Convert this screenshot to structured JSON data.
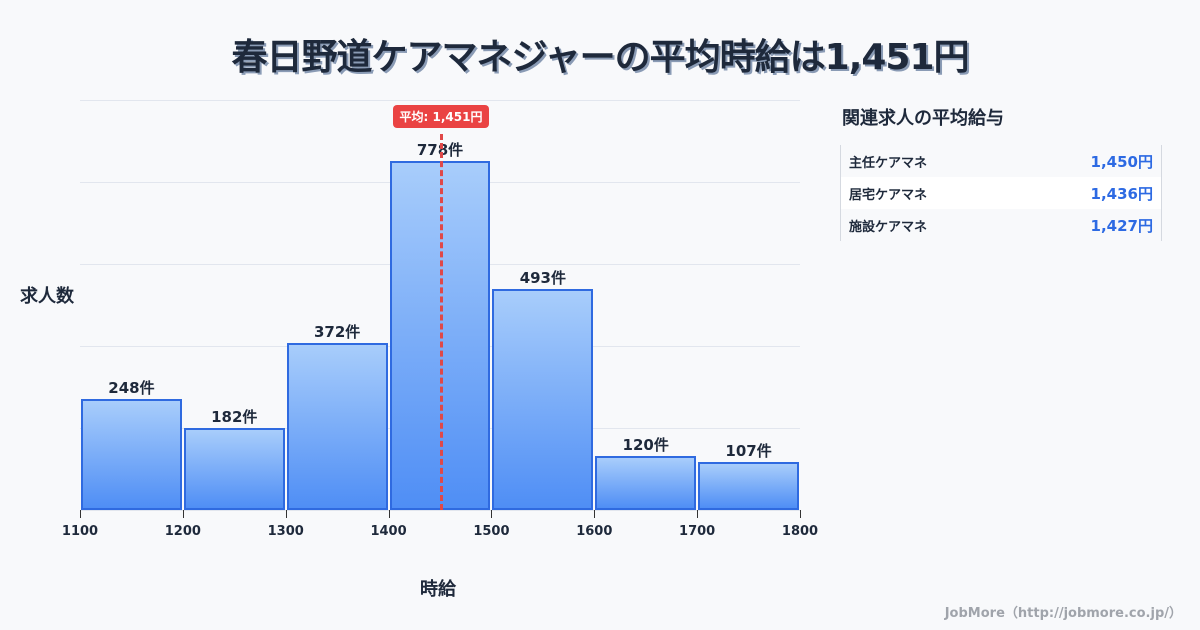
{
  "title": "春日野道ケアマネジャーの平均時給は1,451円",
  "chart_data": {
    "type": "bar",
    "title": "春日野道ケアマネジャーの平均時給は1,451円",
    "xlabel": "時給",
    "ylabel": "求人数",
    "bin_edges": [
      1100,
      1200,
      1300,
      1400,
      1500,
      1600,
      1700,
      1800
    ],
    "categories": [
      "1100-1200",
      "1200-1300",
      "1300-1400",
      "1400-1500",
      "1500-1600",
      "1600-1700",
      "1700-1800"
    ],
    "values": [
      248,
      182,
      372,
      778,
      493,
      120,
      107
    ],
    "value_labels": [
      "248件",
      "182件",
      "372件",
      "778件",
      "493件",
      "120件",
      "107件"
    ],
    "x_ticks": [
      "1100",
      "1200",
      "1300",
      "1400",
      "1500",
      "1600",
      "1700",
      "1800"
    ],
    "mean": 1451,
    "mean_label": "平均: 1,451円",
    "grid": true,
    "ylim": [
      0,
      913
    ]
  },
  "side_panel": {
    "title": "関連求人の平均給与",
    "rows": [
      {
        "name": "主任ケアマネ",
        "value": "1,450円"
      },
      {
        "name": "居宅ケアマネ",
        "value": "1,436円"
      },
      {
        "name": "施設ケアマネ",
        "value": "1,427円"
      }
    ]
  },
  "footer": "JobMore（http://jobmore.co.jp/）",
  "colors": {
    "bar_border": "#2f6ae0",
    "bar_top": "#a8cdfb",
    "bar_bottom": "#4f8ef5",
    "mean": "#ea4343",
    "value": "#2d6ae3"
  }
}
